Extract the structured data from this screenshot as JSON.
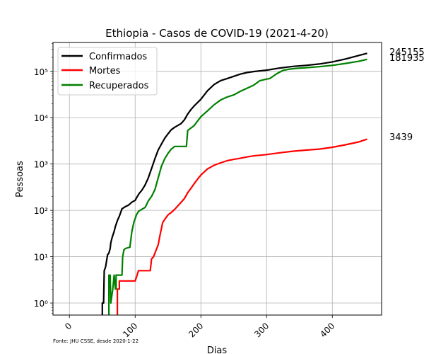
{
  "chart_data": {
    "type": "line",
    "title": "Ethiopia - Casos de COVID-19 (2021-4-20)",
    "xlabel": "Dias",
    "ylabel": "Pessoas",
    "y_scale": "log",
    "xlim": [
      -25,
      475
    ],
    "ylim": [
      0.55,
      420000
    ],
    "x_ticks": [
      0,
      100,
      200,
      300,
      400
    ],
    "x_tick_labels": [
      "0",
      "100",
      "200",
      "300",
      "400"
    ],
    "y_ticks": [
      1,
      10,
      100,
      1000,
      10000,
      100000
    ],
    "y_tick_labels": [
      "10⁰",
      "10¹",
      "10²",
      "10³",
      "10⁴",
      "10⁵"
    ],
    "grid": true,
    "legend_position": "top-left",
    "end_labels": [
      "245155",
      "181935",
      "3439"
    ],
    "source_note": "Fonte: JHU CSSE, desde 2020-1-22",
    "series": [
      {
        "name": "Confirmados",
        "color": "#000000",
        "points": [
          [
            50,
            0.55
          ],
          [
            50,
            1
          ],
          [
            52,
            1
          ],
          [
            53,
            5
          ],
          [
            55,
            6
          ],
          [
            57,
            9
          ],
          [
            58,
            11
          ],
          [
            60,
            12
          ],
          [
            62,
            15
          ],
          [
            63,
            20
          ],
          [
            65,
            26
          ],
          [
            68,
            35
          ],
          [
            70,
            45
          ],
          [
            73,
            60
          ],
          [
            76,
            75
          ],
          [
            78,
            90
          ],
          [
            80,
            108
          ],
          [
            85,
            120
          ],
          [
            90,
            130
          ],
          [
            95,
            150
          ],
          [
            100,
            165
          ],
          [
            103,
            195
          ],
          [
            106,
            230
          ],
          [
            110,
            270
          ],
          [
            115,
            350
          ],
          [
            120,
            500
          ],
          [
            125,
            800
          ],
          [
            130,
            1300
          ],
          [
            135,
            2000
          ],
          [
            140,
            2700
          ],
          [
            145,
            3600
          ],
          [
            150,
            4500
          ],
          [
            155,
            5500
          ],
          [
            160,
            6200
          ],
          [
            165,
            6800
          ],
          [
            170,
            7500
          ],
          [
            175,
            9000
          ],
          [
            180,
            12000
          ],
          [
            185,
            15000
          ],
          [
            190,
            18000
          ],
          [
            200,
            25000
          ],
          [
            210,
            38000
          ],
          [
            220,
            52000
          ],
          [
            230,
            63000
          ],
          [
            240,
            70000
          ],
          [
            250,
            78000
          ],
          [
            260,
            87000
          ],
          [
            270,
            94000
          ],
          [
            280,
            99000
          ],
          [
            300,
            106000
          ],
          [
            320,
            118000
          ],
          [
            340,
            128000
          ],
          [
            360,
            135000
          ],
          [
            380,
            144000
          ],
          [
            400,
            160000
          ],
          [
            420,
            185000
          ],
          [
            440,
            220000
          ],
          [
            453,
            245155
          ]
        ]
      },
      {
        "name": "Mortes",
        "color": "#ff0000",
        "points": [
          [
            73,
            0.55
          ],
          [
            73,
            2
          ],
          [
            76,
            2
          ],
          [
            76,
            3
          ],
          [
            100,
            3
          ],
          [
            103,
            4
          ],
          [
            105,
            5
          ],
          [
            115,
            5
          ],
          [
            123,
            5
          ],
          [
            125,
            9
          ],
          [
            128,
            10
          ],
          [
            132,
            14
          ],
          [
            135,
            18
          ],
          [
            138,
            30
          ],
          [
            142,
            55
          ],
          [
            147,
            70
          ],
          [
            150,
            80
          ],
          [
            155,
            90
          ],
          [
            160,
            105
          ],
          [
            165,
            125
          ],
          [
            170,
            150
          ],
          [
            175,
            180
          ],
          [
            180,
            240
          ],
          [
            185,
            300
          ],
          [
            190,
            380
          ],
          [
            195,
            470
          ],
          [
            200,
            580
          ],
          [
            210,
            780
          ],
          [
            220,
            940
          ],
          [
            230,
            1060
          ],
          [
            240,
            1180
          ],
          [
            250,
            1260
          ],
          [
            260,
            1330
          ],
          [
            270,
            1420
          ],
          [
            280,
            1500
          ],
          [
            300,
            1600
          ],
          [
            320,
            1750
          ],
          [
            340,
            1890
          ],
          [
            360,
            2000
          ],
          [
            380,
            2100
          ],
          [
            400,
            2300
          ],
          [
            420,
            2600
          ],
          [
            440,
            3000
          ],
          [
            453,
            3439
          ]
        ]
      },
      {
        "name": "Recuperados",
        "color": "#008000",
        "points": [
          [
            60,
            0.55
          ],
          [
            60,
            4
          ],
          [
            62,
            4
          ],
          [
            63,
            1
          ],
          [
            66,
            2
          ],
          [
            68,
            4
          ],
          [
            70,
            2
          ],
          [
            71,
            2
          ],
          [
            71,
            4
          ],
          [
            80,
            4
          ],
          [
            81,
            10
          ],
          [
            83,
            14
          ],
          [
            85,
            15
          ],
          [
            92,
            16
          ],
          [
            95,
            35
          ],
          [
            98,
            55
          ],
          [
            102,
            80
          ],
          [
            105,
            95
          ],
          [
            110,
            105
          ],
          [
            115,
            115
          ],
          [
            117,
            130
          ],
          [
            120,
            160
          ],
          [
            125,
            200
          ],
          [
            130,
            280
          ],
          [
            135,
            500
          ],
          [
            140,
            900
          ],
          [
            145,
            1300
          ],
          [
            150,
            1700
          ],
          [
            155,
            2100
          ],
          [
            160,
            2400
          ],
          [
            178,
            2400
          ],
          [
            180,
            5300
          ],
          [
            185,
            6000
          ],
          [
            190,
            6800
          ],
          [
            195,
            8500
          ],
          [
            200,
            10500
          ],
          [
            210,
            14000
          ],
          [
            220,
            19000
          ],
          [
            230,
            24000
          ],
          [
            240,
            28000
          ],
          [
            250,
            31000
          ],
          [
            260,
            37000
          ],
          [
            270,
            43000
          ],
          [
            280,
            50000
          ],
          [
            290,
            63000
          ],
          [
            300,
            68000
          ],
          [
            305,
            70000
          ],
          [
            315,
            88000
          ],
          [
            325,
            105000
          ],
          [
            335,
            112000
          ],
          [
            345,
            116000
          ],
          [
            360,
            120000
          ],
          [
            380,
            126000
          ],
          [
            400,
            135000
          ],
          [
            420,
            148000
          ],
          [
            440,
            165000
          ],
          [
            453,
            181935
          ]
        ]
      }
    ]
  }
}
